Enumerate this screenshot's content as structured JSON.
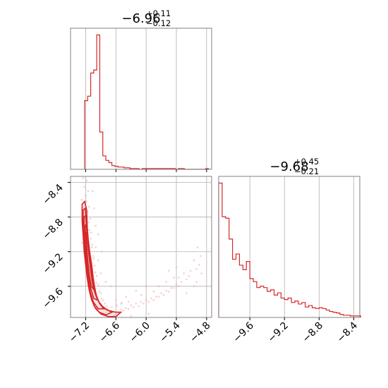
{
  "chart_data": [
    {
      "type": "histogram",
      "panel": "top-left",
      "title": "",
      "title_median": "−6.96",
      "title_plus": "+0.11",
      "title_minus": "−0.12",
      "xlim": [
        -7.5,
        -4.7
      ],
      "bin_edges": [
        -7.22,
        -7.16,
        -7.1,
        -7.04,
        -6.98,
        -6.92,
        -6.86,
        -6.8,
        -6.74,
        -6.68,
        -6.62,
        -6.56,
        -6.5,
        -6.44,
        -6.38,
        -6.32,
        -6.26,
        -6.2,
        -6.14,
        -6.08,
        -6.02,
        -5.96,
        -5.9,
        -5.84,
        -5.78,
        -5.72,
        -5.66,
        -5.6,
        -5.54,
        -5.48,
        -5.42,
        -5.36,
        -5.3,
        -5.24,
        -5.18,
        -5.12,
        -5.06,
        -5.0,
        -4.94,
        -4.88,
        -4.82,
        -4.76
      ],
      "counts": [
        92,
        98,
        129,
        133,
        180,
        50,
        18,
        12,
        9,
        5,
        4,
        3,
        3,
        2,
        2,
        1,
        1,
        1,
        0,
        1,
        1,
        1,
        1,
        1,
        1,
        1,
        1,
        1,
        1,
        1,
        0,
        1,
        1,
        0,
        0,
        0,
        0,
        0,
        0,
        0,
        1
      ],
      "color": "#d62728"
    },
    {
      "type": "scatter-contour",
      "panel": "bottom-left",
      "xlim": [
        -7.5,
        -4.7
      ],
      "ylim": [
        -9.96,
        -8.33
      ],
      "xticks": [
        "−7.2",
        "−6.6",
        "−6.0",
        "−5.4",
        "−4.8"
      ],
      "xtick_values": [
        -7.2,
        -6.6,
        -6.0,
        -5.4,
        -4.8
      ],
      "yticks": [
        "−8.4",
        "−8.8",
        "−9.2",
        "−9.6"
      ],
      "ytick_values": [
        -8.4,
        -8.8,
        -9.2,
        -9.6
      ],
      "points": [
        [
          -7.23,
          -8.45
        ],
        [
          -7.2,
          -8.55
        ],
        [
          -7.18,
          -8.62
        ],
        [
          -7.25,
          -8.7
        ],
        [
          -7.16,
          -8.74
        ],
        [
          -7.21,
          -8.8
        ],
        [
          -7.14,
          -8.86
        ],
        [
          -7.19,
          -8.9
        ],
        [
          -7.12,
          -8.95
        ],
        [
          -7.22,
          -9.0
        ],
        [
          -7.1,
          -9.05
        ],
        [
          -7.15,
          -9.1
        ],
        [
          -7.08,
          -9.15
        ],
        [
          -7.2,
          -9.2
        ],
        [
          -7.05,
          -9.25
        ],
        [
          -7.12,
          -9.3
        ],
        [
          -7.02,
          -9.36
        ],
        [
          -7.1,
          -9.42
        ],
        [
          -6.98,
          -9.48
        ],
        [
          -7.06,
          -9.52
        ],
        [
          -6.95,
          -9.58
        ],
        [
          -7.0,
          -9.63
        ],
        [
          -6.9,
          -9.68
        ],
        [
          -6.96,
          -9.72
        ],
        [
          -6.85,
          -9.76
        ],
        [
          -6.92,
          -9.8
        ],
        [
          -6.78,
          -9.83
        ],
        [
          -6.86,
          -9.86
        ],
        [
          -6.7,
          -9.88
        ],
        [
          -6.8,
          -9.9
        ],
        [
          -6.6,
          -9.9
        ],
        [
          -6.72,
          -9.92
        ],
        [
          -6.5,
          -9.87
        ],
        [
          -6.62,
          -9.93
        ],
        [
          -6.4,
          -9.85
        ],
        [
          -6.55,
          -9.9
        ],
        [
          -6.3,
          -9.82
        ],
        [
          -6.45,
          -9.88
        ],
        [
          -6.2,
          -9.8
        ],
        [
          -6.35,
          -9.86
        ],
        [
          -6.1,
          -9.78
        ],
        [
          -6.25,
          -9.84
        ],
        [
          -6.0,
          -9.76
        ],
        [
          -6.15,
          -9.83
        ],
        [
          -5.9,
          -9.74
        ],
        [
          -6.05,
          -9.8
        ],
        [
          -5.8,
          -9.72
        ],
        [
          -5.95,
          -9.78
        ],
        [
          -5.7,
          -9.68
        ],
        [
          -5.85,
          -9.76
        ],
        [
          -5.6,
          -9.65
        ],
        [
          -5.75,
          -9.72
        ],
        [
          -5.5,
          -9.62
        ],
        [
          -5.65,
          -9.7
        ],
        [
          -5.4,
          -9.58
        ],
        [
          -5.55,
          -9.66
        ],
        [
          -5.3,
          -9.55
        ],
        [
          -5.45,
          -9.62
        ],
        [
          -5.2,
          -9.52
        ],
        [
          -5.35,
          -9.6
        ],
        [
          -5.25,
          -9.45
        ],
        [
          -5.12,
          -9.42
        ],
        [
          -5.35,
          -9.5
        ],
        [
          -5.0,
          -9.4
        ],
        [
          -5.15,
          -9.48
        ],
        [
          -4.95,
          -9.35
        ],
        [
          -5.05,
          -9.6
        ],
        [
          -4.9,
          -9.45
        ],
        [
          -5.4,
          -9.38
        ],
        [
          -5.6,
          -9.55
        ],
        [
          -5.75,
          -9.6
        ],
        [
          -5.55,
          -9.42
        ],
        [
          -6.0,
          -9.6
        ],
        [
          -6.2,
          -9.65
        ],
        [
          -6.4,
          -9.72
        ],
        [
          -6.6,
          -9.76
        ],
        [
          -6.7,
          -9.6
        ],
        [
          -6.8,
          -9.55
        ],
        [
          -6.9,
          -9.45
        ],
        [
          -6.95,
          -9.3
        ],
        [
          -7.0,
          -9.15
        ],
        [
          -7.25,
          -8.35
        ],
        [
          -7.18,
          -8.38
        ],
        [
          -7.28,
          -8.6
        ],
        [
          -7.27,
          -9.1
        ],
        [
          -7.0,
          -8.9
        ],
        [
          -6.95,
          -9.0
        ],
        [
          -6.88,
          -9.2
        ],
        [
          -7.03,
          -8.7
        ],
        [
          -7.06,
          -8.5
        ],
        [
          -6.65,
          -9.95
        ],
        [
          -6.3,
          -9.94
        ],
        [
          -5.95,
          -9.92
        ],
        [
          -5.2,
          -9.68
        ],
        [
          -5.0,
          -9.55
        ],
        [
          -4.92,
          -9.25
        ],
        [
          -4.98,
          -9.15
        ],
        [
          -5.05,
          -9.3
        ],
        [
          -5.45,
          -9.5
        ],
        [
          -5.85,
          -9.66
        ],
        [
          -6.5,
          -9.8
        ],
        [
          -6.35,
          -9.78
        ],
        [
          -6.1,
          -9.7
        ],
        [
          -7.15,
          -8.5
        ],
        [
          -7.13,
          -8.68
        ],
        [
          -7.11,
          -8.82
        ],
        [
          -7.09,
          -8.98
        ],
        [
          -7.07,
          -9.12
        ],
        [
          -7.04,
          -9.28
        ],
        [
          -7.01,
          -9.44
        ],
        [
          -6.99,
          -9.56
        ],
        [
          -6.93,
          -9.66
        ],
        [
          -6.88,
          -9.74
        ],
        [
          -6.82,
          -9.8
        ],
        [
          -6.76,
          -9.86
        ],
        [
          -6.68,
          -9.84
        ],
        [
          -6.58,
          -9.82
        ],
        [
          -6.48,
          -9.79
        ]
      ],
      "contour_lines": [
        [
          [
            -7.27,
            -8.65
          ],
          [
            -7.22,
            -8.62
          ],
          [
            -7.18,
            -8.72
          ],
          [
            -7.17,
            -8.9
          ],
          [
            -7.15,
            -9.05
          ],
          [
            -7.12,
            -9.2
          ],
          [
            -7.08,
            -9.35
          ],
          [
            -7.05,
            -9.5
          ],
          [
            -7.02,
            -9.62
          ],
          [
            -6.98,
            -9.72
          ],
          [
            -6.92,
            -9.8
          ],
          [
            -6.85,
            -9.85
          ],
          [
            -6.75,
            -9.88
          ],
          [
            -6.6,
            -9.9
          ],
          [
            -6.5,
            -9.9
          ],
          [
            -6.6,
            -9.95
          ],
          [
            -6.75,
            -9.95
          ],
          [
            -6.9,
            -9.92
          ],
          [
            -7.0,
            -9.86
          ],
          [
            -7.08,
            -9.76
          ],
          [
            -7.13,
            -9.64
          ],
          [
            -7.17,
            -9.5
          ],
          [
            -7.2,
            -9.35
          ],
          [
            -7.23,
            -9.2
          ],
          [
            -7.25,
            -9.02
          ],
          [
            -7.27,
            -8.85
          ],
          [
            -7.27,
            -8.65
          ]
        ],
        [
          [
            -7.25,
            -8.72
          ],
          [
            -7.21,
            -8.7
          ],
          [
            -7.19,
            -8.85
          ],
          [
            -7.17,
            -9.0
          ],
          [
            -7.14,
            -9.15
          ],
          [
            -7.11,
            -9.3
          ],
          [
            -7.08,
            -9.45
          ],
          [
            -7.05,
            -9.58
          ],
          [
            -7.01,
            -9.68
          ],
          [
            -6.95,
            -9.77
          ],
          [
            -6.87,
            -9.83
          ],
          [
            -6.78,
            -9.87
          ],
          [
            -6.68,
            -9.9
          ],
          [
            -6.8,
            -9.93
          ],
          [
            -6.93,
            -9.9
          ],
          [
            -7.03,
            -9.83
          ],
          [
            -7.1,
            -9.72
          ],
          [
            -7.15,
            -9.58
          ],
          [
            -7.18,
            -9.42
          ],
          [
            -7.21,
            -9.26
          ],
          [
            -7.23,
            -9.1
          ],
          [
            -7.25,
            -8.92
          ],
          [
            -7.25,
            -8.72
          ]
        ],
        [
          [
            -7.23,
            -8.8
          ],
          [
            -7.2,
            -8.78
          ],
          [
            -7.18,
            -8.92
          ],
          [
            -7.16,
            -9.06
          ],
          [
            -7.13,
            -9.22
          ],
          [
            -7.1,
            -9.38
          ],
          [
            -7.07,
            -9.52
          ],
          [
            -7.04,
            -9.63
          ],
          [
            -6.99,
            -9.72
          ],
          [
            -6.92,
            -9.8
          ],
          [
            -6.84,
            -9.86
          ],
          [
            -6.95,
            -9.86
          ],
          [
            -7.05,
            -9.78
          ],
          [
            -7.11,
            -9.66
          ],
          [
            -7.15,
            -9.52
          ],
          [
            -7.18,
            -9.36
          ],
          [
            -7.2,
            -9.2
          ],
          [
            -7.22,
            -9.04
          ],
          [
            -7.23,
            -8.9
          ],
          [
            -7.23,
            -8.8
          ]
        ],
        [
          [
            -7.21,
            -8.9
          ],
          [
            -7.19,
            -8.88
          ],
          [
            -7.17,
            -9.0
          ],
          [
            -7.15,
            -9.14
          ],
          [
            -7.12,
            -9.3
          ],
          [
            -7.09,
            -9.45
          ],
          [
            -7.06,
            -9.57
          ],
          [
            -7.02,
            -9.67
          ],
          [
            -6.96,
            -9.76
          ],
          [
            -7.04,
            -9.74
          ],
          [
            -7.1,
            -9.62
          ],
          [
            -7.14,
            -9.48
          ],
          [
            -7.17,
            -9.32
          ],
          [
            -7.19,
            -9.16
          ],
          [
            -7.2,
            -9.02
          ],
          [
            -7.21,
            -8.9
          ]
        ],
        [
          [
            -7.2,
            -8.98
          ],
          [
            -7.18,
            -8.98
          ],
          [
            -7.16,
            -9.1
          ],
          [
            -7.13,
            -9.26
          ],
          [
            -7.1,
            -9.42
          ],
          [
            -7.07,
            -9.54
          ],
          [
            -7.04,
            -9.64
          ],
          [
            -7.09,
            -9.6
          ],
          [
            -7.13,
            -9.46
          ],
          [
            -7.16,
            -9.3
          ],
          [
            -7.18,
            -9.14
          ],
          [
            -7.2,
            -8.98
          ]
        ]
      ],
      "color": "#d62728"
    },
    {
      "type": "histogram",
      "panel": "bottom-right",
      "title": "",
      "title_median": "−9.68",
      "title_plus": "+0.45",
      "title_minus": "−0.21",
      "xlim": [
        -9.96,
        -8.33
      ],
      "xticks": [
        "−9.6",
        "−9.2",
        "−8.8",
        "−8.4"
      ],
      "xtick_values": [
        -9.6,
        -9.2,
        -8.8,
        -8.4
      ],
      "bin_edges": [
        -9.96,
        -9.92,
        -9.88,
        -9.84,
        -9.8,
        -9.76,
        -9.72,
        -9.68,
        -9.64,
        -9.6,
        -9.56,
        -9.52,
        -9.48,
        -9.44,
        -9.4,
        -9.36,
        -9.32,
        -9.28,
        -9.24,
        -9.2,
        -9.16,
        -9.12,
        -9.08,
        -9.04,
        -9.0,
        -8.96,
        -8.92,
        -8.88,
        -8.84,
        -8.8,
        -8.76,
        -8.72,
        -8.68,
        -8.64,
        -8.6,
        -8.56,
        -8.52,
        -8.48,
        -8.44,
        -8.4,
        -8.36,
        -8.32
      ],
      "counts": [
        180,
        135,
        133,
        105,
        78,
        85,
        70,
        64,
        75,
        52,
        48,
        40,
        42,
        40,
        35,
        37,
        30,
        33,
        26,
        24,
        26,
        20,
        22,
        18,
        20,
        14,
        16,
        13,
        12,
        13,
        12,
        10,
        8,
        7,
        6,
        4,
        3,
        3,
        2,
        2,
        2
      ],
      "color": "#d62728"
    }
  ]
}
